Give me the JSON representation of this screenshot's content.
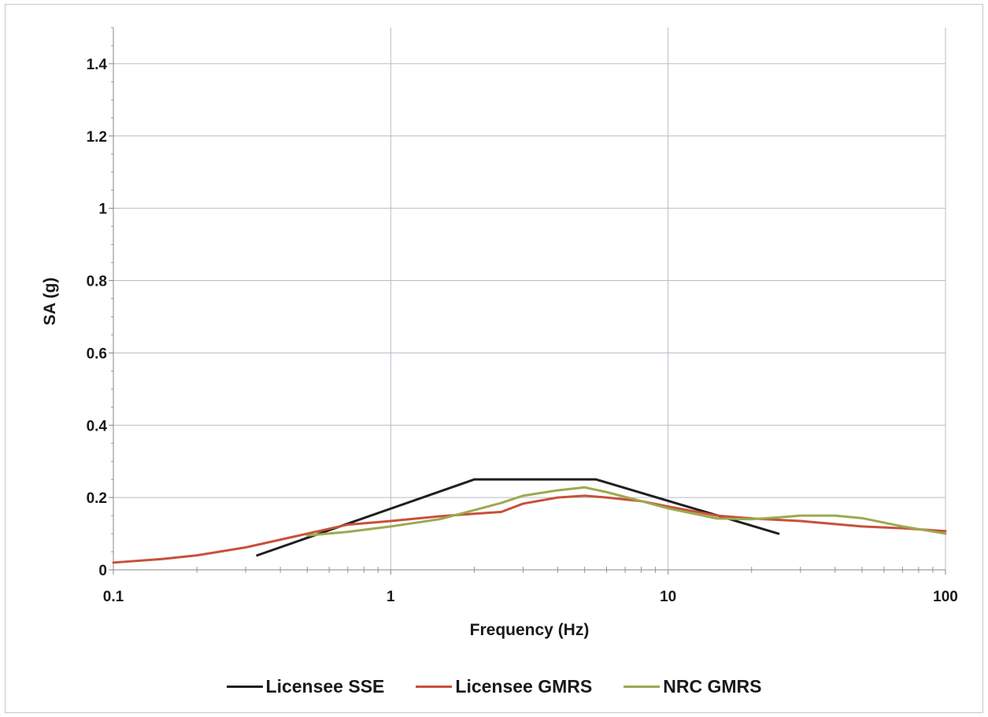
{
  "chart_data": {
    "type": "line",
    "title": "",
    "xlabel": "Frequency (Hz)",
    "ylabel": "SA (g)",
    "xscale": "log",
    "xlim": [
      0.1,
      100
    ],
    "ylim": [
      0,
      1.5
    ],
    "x_ticks": [
      "0.1",
      "1",
      "10",
      "100"
    ],
    "y_ticks": [
      "0",
      "0.2",
      "0.4",
      "0.6",
      "0.8",
      "1",
      "1.2",
      "1.4"
    ],
    "grid": true,
    "legend_position": "bottom",
    "series": [
      {
        "name": "Licensee SSE",
        "color": "#1f1f1f",
        "x": [
          0.33,
          2.0,
          5.5,
          25
        ],
        "y": [
          0.04,
          0.25,
          0.25,
          0.1
        ]
      },
      {
        "name": "Licensee GMRS",
        "color": "#c9503a",
        "x": [
          0.1,
          0.15,
          0.2,
          0.3,
          0.5,
          0.7,
          1.0,
          1.5,
          2.0,
          2.5,
          3.0,
          4.0,
          5.0,
          6.0,
          8.0,
          10,
          15,
          20,
          30,
          50,
          70,
          100
        ],
        "y": [
          0.02,
          0.03,
          0.04,
          0.062,
          0.1,
          0.125,
          0.135,
          0.148,
          0.155,
          0.16,
          0.183,
          0.2,
          0.205,
          0.2,
          0.19,
          0.175,
          0.15,
          0.142,
          0.135,
          0.12,
          0.115,
          0.107
        ]
      },
      {
        "name": "NRC GMRS",
        "color": "#9da94f",
        "x": [
          0.5,
          0.7,
          1.0,
          1.5,
          2.0,
          2.5,
          3.0,
          4.0,
          5.0,
          6.0,
          8.0,
          10,
          15,
          20,
          25,
          30,
          40,
          50,
          70,
          100
        ],
        "y": [
          0.095,
          0.105,
          0.12,
          0.14,
          0.165,
          0.185,
          0.205,
          0.22,
          0.228,
          0.215,
          0.19,
          0.17,
          0.142,
          0.14,
          0.145,
          0.15,
          0.15,
          0.143,
          0.12,
          0.1
        ]
      }
    ]
  }
}
